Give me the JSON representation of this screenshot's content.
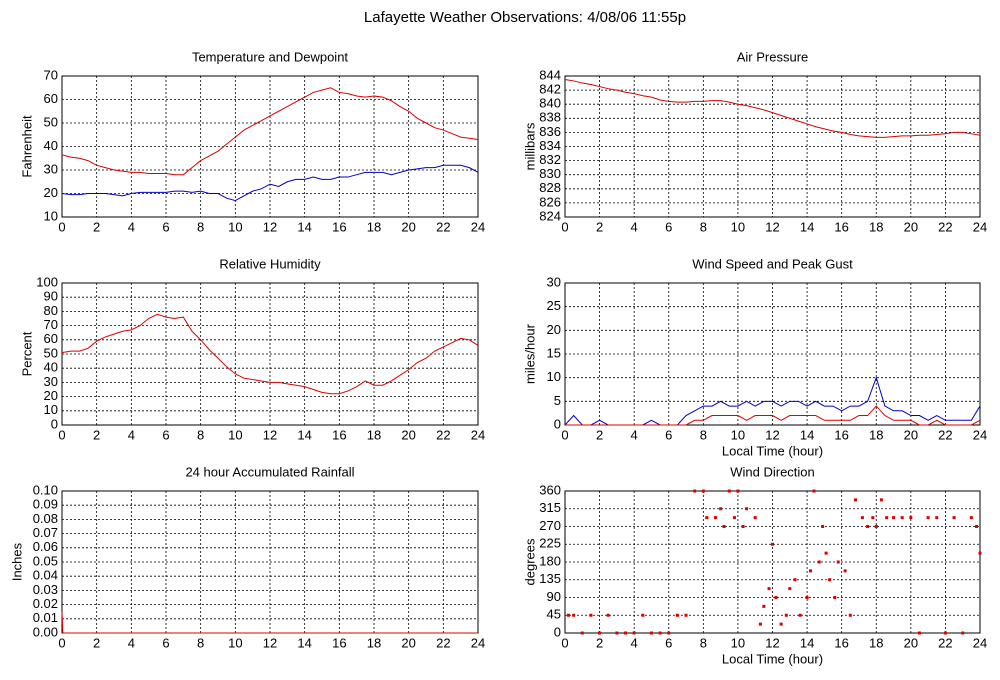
{
  "title": "Lafayette Weather Observations: 4/08/06 11:55p",
  "chart_data": [
    {
      "type": "line",
      "title": "Temperature and Dewpoint",
      "ylabel": "Fahrenheit",
      "x": [
        0,
        0.5,
        1,
        1.5,
        2,
        2.5,
        3,
        3.5,
        4,
        4.5,
        5,
        5.5,
        6,
        6.5,
        7,
        7.5,
        8,
        8.5,
        9,
        9.5,
        10,
        10.5,
        11,
        11.5,
        12,
        12.5,
        13,
        13.5,
        14,
        14.5,
        15,
        15.5,
        16,
        16.5,
        17,
        17.5,
        18,
        18.5,
        19,
        19.5,
        20,
        20.5,
        21,
        21.5,
        22,
        22.5,
        23,
        23.5,
        24
      ],
      "series": [
        {
          "color": "#dd0000",
          "values": [
            36.5,
            35.5,
            35,
            34,
            32,
            31,
            30,
            29.5,
            29,
            29,
            28.5,
            28.5,
            28.5,
            28,
            28,
            31,
            34,
            36,
            38,
            41,
            44,
            47,
            49,
            51,
            53,
            55,
            57,
            59,
            61,
            63,
            64,
            65,
            63,
            62.5,
            61.5,
            61,
            61.5,
            61,
            59.5,
            57,
            55,
            52,
            50,
            48,
            47,
            45.5,
            44,
            43.5,
            43
          ]
        },
        {
          "color": "#0000cc",
          "values": [
            20,
            19.5,
            19.5,
            20,
            20,
            20,
            19.5,
            19,
            20,
            20.5,
            20.5,
            20.5,
            20.5,
            21,
            21,
            20.5,
            21,
            20,
            20,
            18,
            17,
            19,
            21,
            22,
            24,
            23,
            25,
            26,
            26,
            27,
            26,
            26,
            27,
            27,
            28,
            29,
            29,
            29,
            28,
            29,
            30,
            30.5,
            31,
            31,
            32,
            32,
            32,
            31,
            29
          ]
        }
      ],
      "xlim": [
        0,
        24
      ],
      "xticks": [
        0,
        2,
        4,
        6,
        8,
        10,
        12,
        14,
        16,
        18,
        20,
        22,
        24
      ],
      "ylim": [
        10,
        70
      ],
      "yticks": [
        10,
        20,
        30,
        40,
        50,
        60,
        70
      ],
      "grid": true
    },
    {
      "type": "line",
      "title": "Air Pressure",
      "ylabel": "millibars",
      "x": [
        0,
        0.5,
        1,
        1.5,
        2,
        2.5,
        3,
        3.5,
        4,
        4.5,
        5,
        5.5,
        6,
        6.5,
        7,
        7.5,
        8,
        8.5,
        9,
        9.5,
        10,
        10.5,
        11,
        11.5,
        12,
        12.5,
        13,
        13.5,
        14,
        14.5,
        15,
        15.5,
        16,
        16.5,
        17,
        17.5,
        18,
        18.5,
        19,
        19.5,
        20,
        20.5,
        21,
        21.5,
        22,
        22.5,
        23,
        23.5,
        24
      ],
      "series": [
        {
          "color": "#dd0000",
          "values": [
            843.5,
            843.3,
            843,
            842.8,
            842.5,
            842.2,
            842,
            841.7,
            841.5,
            841.2,
            841,
            840.6,
            840.4,
            840.3,
            840.3,
            840.4,
            840.4,
            840.5,
            840.5,
            840.3,
            840,
            839.8,
            839.5,
            839.2,
            838.8,
            838.4,
            838,
            837.6,
            837.2,
            836.8,
            836.5,
            836.2,
            836,
            835.7,
            835.5,
            835.4,
            835.3,
            835.3,
            835.4,
            835.5,
            835.5,
            835.6,
            835.6,
            835.7,
            835.8,
            836,
            836,
            835.8,
            835.6
          ]
        }
      ],
      "xlim": [
        0,
        24
      ],
      "xticks": [
        0,
        2,
        4,
        6,
        8,
        10,
        12,
        14,
        16,
        18,
        20,
        22,
        24
      ],
      "ylim": [
        824,
        844
      ],
      "yticks": [
        824,
        826,
        828,
        830,
        832,
        834,
        836,
        838,
        840,
        842,
        844
      ],
      "grid": true
    },
    {
      "type": "line",
      "title": "Relative Humidity",
      "ylabel": "Percent",
      "x": [
        0,
        0.5,
        1,
        1.5,
        2,
        2.5,
        3,
        3.5,
        4,
        4.5,
        5,
        5.5,
        6,
        6.5,
        7,
        7.5,
        8,
        8.5,
        9,
        9.5,
        10,
        10.5,
        11,
        11.5,
        12,
        12.5,
        13,
        13.5,
        14,
        14.5,
        15,
        15.5,
        16,
        16.5,
        17,
        17.5,
        18,
        18.5,
        19,
        19.5,
        20,
        20.5,
        21,
        21.5,
        22,
        22.5,
        23,
        23.5,
        24
      ],
      "series": [
        {
          "color": "#dd0000",
          "values": [
            51,
            52,
            52,
            54,
            59,
            62,
            64,
            66,
            67,
            70,
            75,
            78,
            76,
            75,
            76,
            66,
            60,
            53,
            47,
            41,
            36,
            33,
            32,
            31,
            30,
            30,
            29,
            28,
            27,
            25,
            23,
            22,
            22,
            24,
            27,
            31,
            28,
            28,
            31,
            35,
            39,
            44,
            47,
            52,
            55,
            58,
            61,
            60,
            56
          ]
        }
      ],
      "xlim": [
        0,
        24
      ],
      "xticks": [
        0,
        2,
        4,
        6,
        8,
        10,
        12,
        14,
        16,
        18,
        20,
        22,
        24
      ],
      "ylim": [
        0,
        100
      ],
      "yticks": [
        0,
        10,
        20,
        30,
        40,
        50,
        60,
        70,
        80,
        90,
        100
      ],
      "grid": true
    },
    {
      "type": "line",
      "title": "Wind Speed and Peak Gust",
      "ylabel": "miles/hour",
      "xlabel": "Local Time (hour)",
      "x": [
        0,
        0.5,
        1,
        1.5,
        2,
        2.5,
        3,
        3.5,
        4,
        4.5,
        5,
        5.5,
        6,
        6.5,
        7,
        7.5,
        8,
        8.5,
        9,
        9.5,
        10,
        10.5,
        11,
        11.5,
        12,
        12.5,
        13,
        13.5,
        14,
        14.5,
        15,
        15.5,
        16,
        16.5,
        17,
        17.5,
        18,
        18.5,
        19,
        19.5,
        20,
        20.5,
        21,
        21.5,
        22,
        22.5,
        23,
        23.5,
        24
      ],
      "series": [
        {
          "color": "#0000cc",
          "values": [
            0,
            2,
            0,
            0,
            1,
            0,
            0,
            0,
            0,
            0,
            1,
            0,
            0,
            0,
            2,
            3,
            4,
            4,
            5,
            4,
            4,
            5,
            4,
            5,
            5,
            4,
            5,
            5,
            4,
            5,
            4,
            4,
            3,
            4,
            4,
            5,
            10,
            4,
            3,
            3,
            2,
            2,
            1,
            2,
            1,
            1,
            1,
            1,
            4
          ]
        },
        {
          "color": "#dd0000",
          "values": [
            0,
            0,
            0,
            0,
            0,
            0,
            0,
            0,
            0,
            0,
            0,
            0,
            0,
            0,
            0,
            1,
            1,
            2,
            2,
            2,
            2,
            1,
            2,
            2,
            2,
            1,
            2,
            2,
            2,
            2,
            1,
            1,
            1,
            1,
            2,
            2,
            4,
            2,
            1,
            1,
            1,
            0,
            0,
            1,
            0,
            0,
            0,
            0,
            1
          ]
        }
      ],
      "xlim": [
        0,
        24
      ],
      "xticks": [
        0,
        2,
        4,
        6,
        8,
        10,
        12,
        14,
        16,
        18,
        20,
        22,
        24
      ],
      "ylim": [
        0,
        30
      ],
      "yticks": [
        0,
        5,
        10,
        15,
        20,
        25,
        30
      ],
      "grid": true
    },
    {
      "type": "line",
      "title": "24 hour Accumulated Rainfall",
      "ylabel": "Inches",
      "x": [
        0,
        0.05,
        24
      ],
      "series": [
        {
          "color": "#dd0000",
          "values": [
            0.015,
            0,
            0
          ]
        }
      ],
      "xlim": [
        0,
        24
      ],
      "xticks": [
        0,
        2,
        4,
        6,
        8,
        10,
        12,
        14,
        16,
        18,
        20,
        22,
        24
      ],
      "ylim": [
        0,
        0.1
      ],
      "yticks": [
        {
          "value": 0,
          "label": "0.00"
        },
        {
          "value": 0.01,
          "label": "0.01"
        },
        {
          "value": 0.02,
          "label": "0.02"
        },
        {
          "value": 0.03,
          "label": "0.03"
        },
        {
          "value": 0.04,
          "label": "0.04"
        },
        {
          "value": 0.05,
          "label": "0.05"
        },
        {
          "value": 0.06,
          "label": "0.06"
        },
        {
          "value": 0.07,
          "label": "0.07"
        },
        {
          "value": 0.08,
          "label": "0.08"
        },
        {
          "value": 0.09,
          "label": "0.09"
        },
        {
          "value": 0.1,
          "label": "0.10"
        }
      ],
      "grid": true
    },
    {
      "type": "scatter",
      "title": "Wind Direction",
      "ylabel": "degrees",
      "xlabel": "Local Time (hour)",
      "x": [
        0.2,
        0.5,
        1,
        1.5,
        2,
        2.5,
        3,
        3.5,
        4,
        4.5,
        5,
        5.5,
        6,
        6.5,
        7,
        7.5,
        8,
        8.2,
        8.7,
        9,
        9.2,
        9.5,
        9.8,
        10,
        10.3,
        10.5,
        11,
        11.3,
        11.5,
        11.8,
        12,
        12.2,
        12.5,
        12.8,
        13,
        13.3,
        13.6,
        14,
        14.2,
        14.4,
        14.7,
        14.9,
        15.1,
        15.3,
        15.6,
        15.8,
        16.2,
        16.5,
        16.8,
        17.2,
        17.5,
        17.8,
        18,
        18.3,
        18.6,
        19,
        19.5,
        20,
        20.5,
        21,
        21.5,
        22,
        22.5,
        23,
        23.5,
        23.8,
        24
      ],
      "series": [
        {
          "color": "#dd0000",
          "values": [
            45,
            45,
            0,
            45,
            0,
            45,
            0,
            0,
            0,
            45,
            0,
            0,
            0,
            45,
            45,
            360,
            360,
            292.5,
            292.5,
            315,
            270,
            360,
            292.5,
            360,
            270,
            315,
            292.5,
            22.5,
            67.5,
            112.5,
            225,
            90,
            22.5,
            45,
            112.5,
            135,
            45,
            90,
            157.5,
            360,
            180,
            270,
            202.5,
            135,
            90,
            180,
            157.5,
            45,
            337.5,
            292.5,
            270,
            292.5,
            270,
            337.5,
            292.5,
            292.5,
            292.5,
            292.5,
            0,
            292.5,
            292.5,
            0,
            292.5,
            0,
            292.5,
            270,
            202.5
          ]
        }
      ],
      "xlim": [
        0,
        24
      ],
      "xticks": [
        0,
        2,
        4,
        6,
        8,
        10,
        12,
        14,
        16,
        18,
        20,
        22,
        24
      ],
      "ylim": [
        0,
        360
      ],
      "yticks": [
        0,
        45,
        90,
        135,
        180,
        225,
        270,
        315,
        360
      ],
      "grid": true
    }
  ]
}
